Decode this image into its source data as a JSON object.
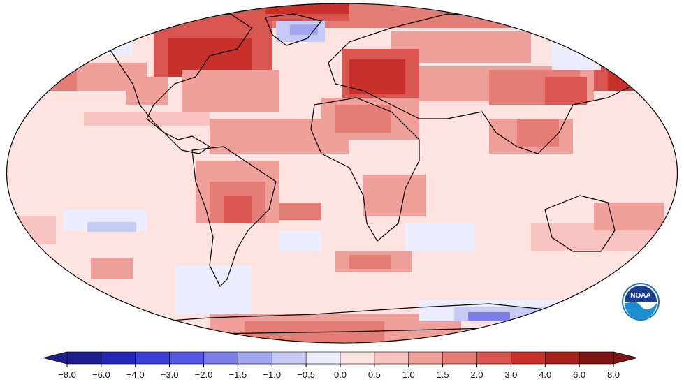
{
  "map": {
    "projection": "robinson",
    "anomaly_field": "temperature anomaly, mostly positive, strongest in northern high latitudes, Europe, East Asia; cool patches in North Pacific, SE Pacific, Southern Ocean",
    "ocean_neutral_color": "#fde4e1"
  },
  "colorbar": {
    "ticks": [
      "-8.0",
      "-6.0",
      "-4.0",
      "-3.0",
      "-2.0",
      "-1.5",
      "-1.0",
      "-0.5",
      "0.0",
      "0.5",
      "1.0",
      "1.5",
      "2.0",
      "3.0",
      "4.0",
      "6.0",
      "8.0"
    ],
    "colors": [
      "#1b1e8c",
      "#2426b8",
      "#3b3fd6",
      "#5558e4",
      "#7c7fea",
      "#a3a6f0",
      "#c8caf6",
      "#eceeff",
      "#fde4e1",
      "#f9c3bf",
      "#f0a09b",
      "#e57d77",
      "#d85550",
      "#c8302b",
      "#a51f1b",
      "#7f1512"
    ]
  },
  "logo": {
    "label": "NOAA",
    "icon": "noaa-seal-icon"
  }
}
